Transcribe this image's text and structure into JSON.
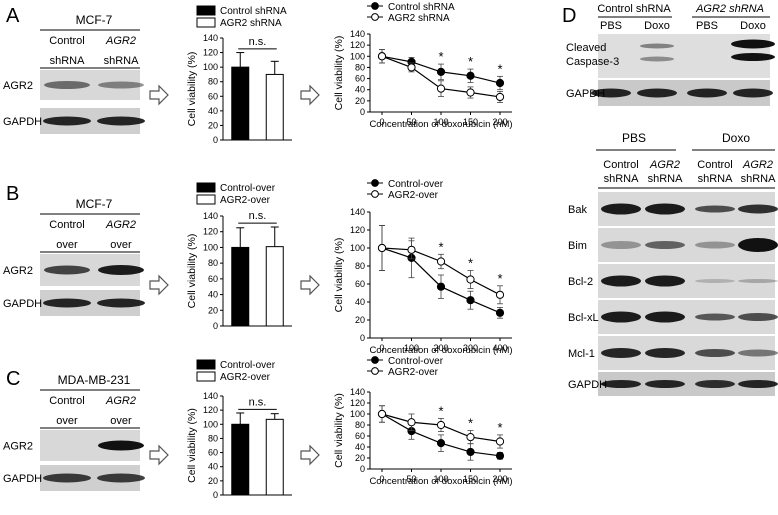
{
  "figure": {
    "panel_labels": [
      "A",
      "B",
      "C",
      "D"
    ],
    "axis_common": {
      "bar_ylabel": "Cell viability (%)",
      "line_ylabel": "Cell viability (%)",
      "xlabel": "Concentration of doxorubicin (nM)",
      "yticks": [
        "0",
        "20",
        "40",
        "60",
        "80",
        "100",
        "120",
        "140"
      ],
      "ns_label": "n.s.",
      "star": "*"
    },
    "panelA": {
      "cell_line": "MCF-7",
      "lane1": [
        "Control",
        "shRNA"
      ],
      "lane2": [
        "AGR2",
        "shRNA"
      ],
      "blot_labels": [
        "AGR2",
        "GAPDH"
      ],
      "bar_legend": [
        "Control shRNA",
        "AGR2 shRNA"
      ],
      "line_legend": [
        "Control shRNA",
        "AGR2 shRNA"
      ]
    },
    "panelB": {
      "cell_line": "MCF-7",
      "lane1": [
        "Control",
        "over"
      ],
      "lane2": [
        "AGR2",
        "over"
      ],
      "blot_labels": [
        "AGR2",
        "GAPDH"
      ],
      "bar_legend": [
        "Control-over",
        "AGR2-over"
      ],
      "line_legend": [
        "Control-over",
        "AGR2-over"
      ]
    },
    "panelC": {
      "cell_line": "MDA-MB-231",
      "lane1": [
        "Control",
        "over"
      ],
      "lane2": [
        "AGR2",
        "over"
      ],
      "blot_labels": [
        "AGR2",
        "GAPDH"
      ],
      "bar_legend": [
        "Control-over",
        "AGR2-over"
      ],
      "line_legend": [
        "Control-over",
        "AGR2-over"
      ]
    },
    "panelD": {
      "top_groups": [
        "Control shRNA",
        "AGR2 shRNA"
      ],
      "top_lanes": [
        "PBS",
        "Doxo",
        "PBS",
        "Doxo"
      ],
      "top_blots": [
        "Cleaved",
        "Caspase-3",
        "GAPDH"
      ],
      "bottom_groups": [
        "PBS",
        "Doxo"
      ],
      "bottom_lanes": [
        [
          "Control",
          "shRNA"
        ],
        [
          "AGR2",
          "shRNA"
        ],
        [
          "Control",
          "shRNA"
        ],
        [
          "AGR2",
          "shRNA"
        ]
      ],
      "bottom_blots": [
        "Bak",
        "Bim",
        "Bcl-2",
        "Bcl-xL",
        "Mcl-1",
        "GAPDH"
      ]
    }
  },
  "chart_data": [
    {
      "id": "A-bar",
      "type": "bar",
      "title": "",
      "categories": [
        "Control shRNA",
        "AGR2 shRNA"
      ],
      "values": [
        100,
        90
      ],
      "errors": [
        20,
        18
      ],
      "ylabel": "Cell viability (%)",
      "ylim": [
        0,
        140
      ],
      "annotation": "n.s."
    },
    {
      "id": "A-line",
      "type": "line",
      "x": [
        0,
        50,
        100,
        150,
        200
      ],
      "series": [
        {
          "name": "Control shRNA",
          "values": [
            100,
            90,
            72,
            65,
            52
          ],
          "errors": [
            12,
            8,
            14,
            12,
            12
          ]
        },
        {
          "name": "AGR2 shRNA",
          "values": [
            100,
            80,
            42,
            35,
            27
          ],
          "errors": [
            12,
            8,
            14,
            10,
            10
          ]
        }
      ],
      "significant_x": [
        100,
        150,
        200
      ],
      "xlabel": "Concentration of doxorubicin (nM)",
      "ylabel": "Cell viability (%)",
      "ylim": [
        0,
        140
      ],
      "xlim": [
        0,
        200
      ]
    },
    {
      "id": "B-bar",
      "type": "bar",
      "categories": [
        "Control-over",
        "AGR2-over"
      ],
      "values": [
        100,
        101
      ],
      "errors": [
        25,
        25
      ],
      "ylabel": "Cell viability (%)",
      "ylim": [
        0,
        140
      ],
      "annotation": "n.s."
    },
    {
      "id": "B-line",
      "type": "line",
      "x": [
        0,
        100,
        200,
        300,
        400
      ],
      "series": [
        {
          "name": "Control-over",
          "values": [
            100,
            89,
            57,
            42,
            28
          ],
          "errors": [
            25,
            22,
            13,
            10,
            6
          ]
        },
        {
          "name": "AGR2-over",
          "values": [
            100,
            98,
            85,
            65,
            48
          ],
          "errors": [
            25,
            10,
            8,
            10,
            10
          ]
        }
      ],
      "significant_x": [
        200,
        300,
        400
      ],
      "xlabel": "Concentration of doxorubicin (nM)",
      "ylabel": "Cell viability (%)",
      "ylim": [
        0,
        140
      ],
      "xlim": [
        0,
        400
      ]
    },
    {
      "id": "C-bar",
      "type": "bar",
      "categories": [
        "Control-over",
        "AGR2-over"
      ],
      "values": [
        100,
        107
      ],
      "errors": [
        16,
        8
      ],
      "ylabel": "Cell viability (%)",
      "ylim": [
        0,
        140
      ],
      "annotation": "n.s."
    },
    {
      "id": "C-line",
      "type": "line",
      "x": [
        0,
        50,
        100,
        150,
        200
      ],
      "series": [
        {
          "name": "Control-over",
          "values": [
            100,
            69,
            47,
            31,
            24
          ],
          "errors": [
            15,
            15,
            15,
            15,
            6
          ]
        },
        {
          "name": "AGR2-over",
          "values": [
            100,
            85,
            80,
            58,
            50
          ],
          "errors": [
            15,
            15,
            12,
            12,
            12
          ]
        }
      ],
      "significant_x": [
        100,
        150,
        200
      ],
      "xlabel": "Concentration of doxorubicin (nM)",
      "ylabel": "Cell viability (%)",
      "ylim": [
        0,
        140
      ],
      "xlim": [
        0,
        200
      ]
    }
  ]
}
